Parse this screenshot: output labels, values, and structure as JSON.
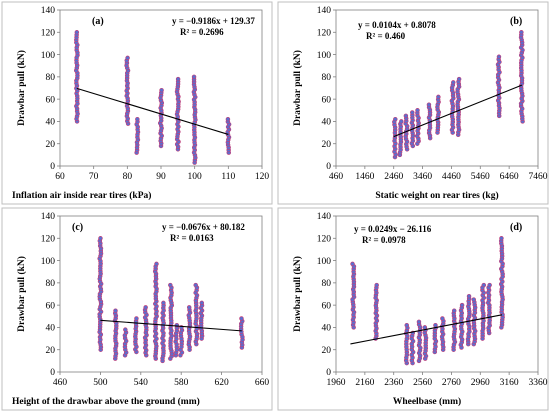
{
  "chart_data": [
    {
      "type": "scatter",
      "panel": "(a)",
      "xlabel": "Inflation air inside rear tires (kPa)",
      "ylabel": "Drawbar pull (kN)",
      "xlim": [
        60,
        120
      ],
      "ylim": [
        0,
        140
      ],
      "xticks": [
        60,
        70,
        80,
        90,
        100,
        110,
        120
      ],
      "yticks": [
        0,
        20,
        40,
        60,
        80,
        100,
        120,
        140
      ],
      "equation": "y = −0.9186x + 129.37",
      "r2": "R² = 0.2696",
      "trend": {
        "slope": -0.9186,
        "intercept": 129.37,
        "x_range": [
          65,
          110
        ]
      },
      "point_groups": [
        {
          "x": 65,
          "y_min": 40,
          "y_max": 120
        },
        {
          "x": 80,
          "y_min": 38,
          "y_max": 97
        },
        {
          "x": 83,
          "y_min": 12,
          "y_max": 42
        },
        {
          "x": 90,
          "y_min": 18,
          "y_max": 68
        },
        {
          "x": 95,
          "y_min": 15,
          "y_max": 78
        },
        {
          "x": 100,
          "y_min": 3,
          "y_max": 80
        },
        {
          "x": 110,
          "y_min": 12,
          "y_max": 42
        }
      ]
    },
    {
      "type": "scatter",
      "panel": "(b)",
      "xlabel": "Static weight on rear tires (kg)",
      "ylabel": "Drawbar pull (kN)",
      "xlim": [
        460,
        7460
      ],
      "ylim": [
        0,
        140
      ],
      "xticks": [
        460,
        1460,
        2460,
        3460,
        4460,
        5460,
        6460,
        7460
      ],
      "yticks": [
        0,
        20,
        40,
        60,
        80,
        100,
        120,
        140
      ],
      "equation": "y = 0.0104x + 0.8078",
      "r2": "R² = 0.460",
      "trend": {
        "slope": 0.0104,
        "intercept": 0.8078,
        "x_range": [
          2460,
          6900
        ]
      },
      "point_groups": [
        {
          "x": 2500,
          "y_min": 8,
          "y_max": 42
        },
        {
          "x": 2700,
          "y_min": 10,
          "y_max": 40
        },
        {
          "x": 2900,
          "y_min": 15,
          "y_max": 45
        },
        {
          "x": 3100,
          "y_min": 18,
          "y_max": 48
        },
        {
          "x": 3300,
          "y_min": 20,
          "y_max": 50
        },
        {
          "x": 3700,
          "y_min": 25,
          "y_max": 55
        },
        {
          "x": 4000,
          "y_min": 30,
          "y_max": 62
        },
        {
          "x": 4500,
          "y_min": 30,
          "y_max": 75
        },
        {
          "x": 4700,
          "y_min": 28,
          "y_max": 78
        },
        {
          "x": 6100,
          "y_min": 45,
          "y_max": 98
        },
        {
          "x": 6900,
          "y_min": 40,
          "y_max": 120
        }
      ]
    },
    {
      "type": "scatter",
      "panel": "(c)",
      "xlabel": "Height of the drawbar above the ground (mm)",
      "ylabel": "Drawbar pull (kN)",
      "xlim": [
        460,
        660
      ],
      "ylim": [
        0,
        140
      ],
      "xticks": [
        460,
        500,
        540,
        580,
        620,
        660
      ],
      "yticks": [
        0,
        20,
        40,
        60,
        80,
        100,
        120,
        140
      ],
      "equation": "y = −0.0676x + 80.182",
      "r2": "R² = 0.0163",
      "trend": {
        "slope": -0.0676,
        "intercept": 80.182,
        "x_range": [
          500,
          640
        ]
      },
      "point_groups": [
        {
          "x": 500,
          "y_min": 20,
          "y_max": 120
        },
        {
          "x": 515,
          "y_min": 12,
          "y_max": 55
        },
        {
          "x": 525,
          "y_min": 15,
          "y_max": 38
        },
        {
          "x": 535,
          "y_min": 18,
          "y_max": 48
        },
        {
          "x": 545,
          "y_min": 15,
          "y_max": 58
        },
        {
          "x": 555,
          "y_min": 12,
          "y_max": 97
        },
        {
          "x": 562,
          "y_min": 10,
          "y_max": 62
        },
        {
          "x": 570,
          "y_min": 12,
          "y_max": 78
        },
        {
          "x": 575,
          "y_min": 15,
          "y_max": 42
        },
        {
          "x": 580,
          "y_min": 15,
          "y_max": 40
        },
        {
          "x": 588,
          "y_min": 20,
          "y_max": 58
        },
        {
          "x": 595,
          "y_min": 25,
          "y_max": 78
        },
        {
          "x": 600,
          "y_min": 30,
          "y_max": 62
        },
        {
          "x": 640,
          "y_min": 22,
          "y_max": 48
        }
      ]
    },
    {
      "type": "scatter",
      "panel": "(d)",
      "xlabel": "Wheelbase (mm)",
      "ylabel": "Drawbar pull (kN)",
      "xlim": [
        1960,
        3360
      ],
      "ylim": [
        0,
        140
      ],
      "xticks": [
        1960,
        2160,
        2360,
        2560,
        2760,
        2960,
        3160,
        3360
      ],
      "yticks": [
        0,
        20,
        40,
        60,
        80,
        100,
        120,
        140
      ],
      "equation": "y = 0.0249x − 26.116",
      "r2": "R² = 0.0978",
      "trend": {
        "slope": 0.0249,
        "intercept": -26.116,
        "x_range": [
          2060,
          3110
        ]
      },
      "point_groups": [
        {
          "x": 2080,
          "y_min": 40,
          "y_max": 97
        },
        {
          "x": 2240,
          "y_min": 30,
          "y_max": 78
        },
        {
          "x": 2450,
          "y_min": 8,
          "y_max": 42
        },
        {
          "x": 2490,
          "y_min": 8,
          "y_max": 35
        },
        {
          "x": 2540,
          "y_min": 10,
          "y_max": 45
        },
        {
          "x": 2580,
          "y_min": 12,
          "y_max": 40
        },
        {
          "x": 2650,
          "y_min": 18,
          "y_max": 42
        },
        {
          "x": 2700,
          "y_min": 20,
          "y_max": 48
        },
        {
          "x": 2780,
          "y_min": 20,
          "y_max": 55
        },
        {
          "x": 2830,
          "y_min": 22,
          "y_max": 60
        },
        {
          "x": 2880,
          "y_min": 25,
          "y_max": 68
        },
        {
          "x": 2920,
          "y_min": 25,
          "y_max": 65
        },
        {
          "x": 2980,
          "y_min": 30,
          "y_max": 78
        },
        {
          "x": 3020,
          "y_min": 35,
          "y_max": 78
        },
        {
          "x": 3110,
          "y_min": 40,
          "y_max": 120
        }
      ]
    }
  ],
  "colors": {
    "marker_fill": "#5a6fd0",
    "marker_edge": "#c0407a",
    "trendline": "#000000",
    "frame": "#bfbfbf"
  }
}
